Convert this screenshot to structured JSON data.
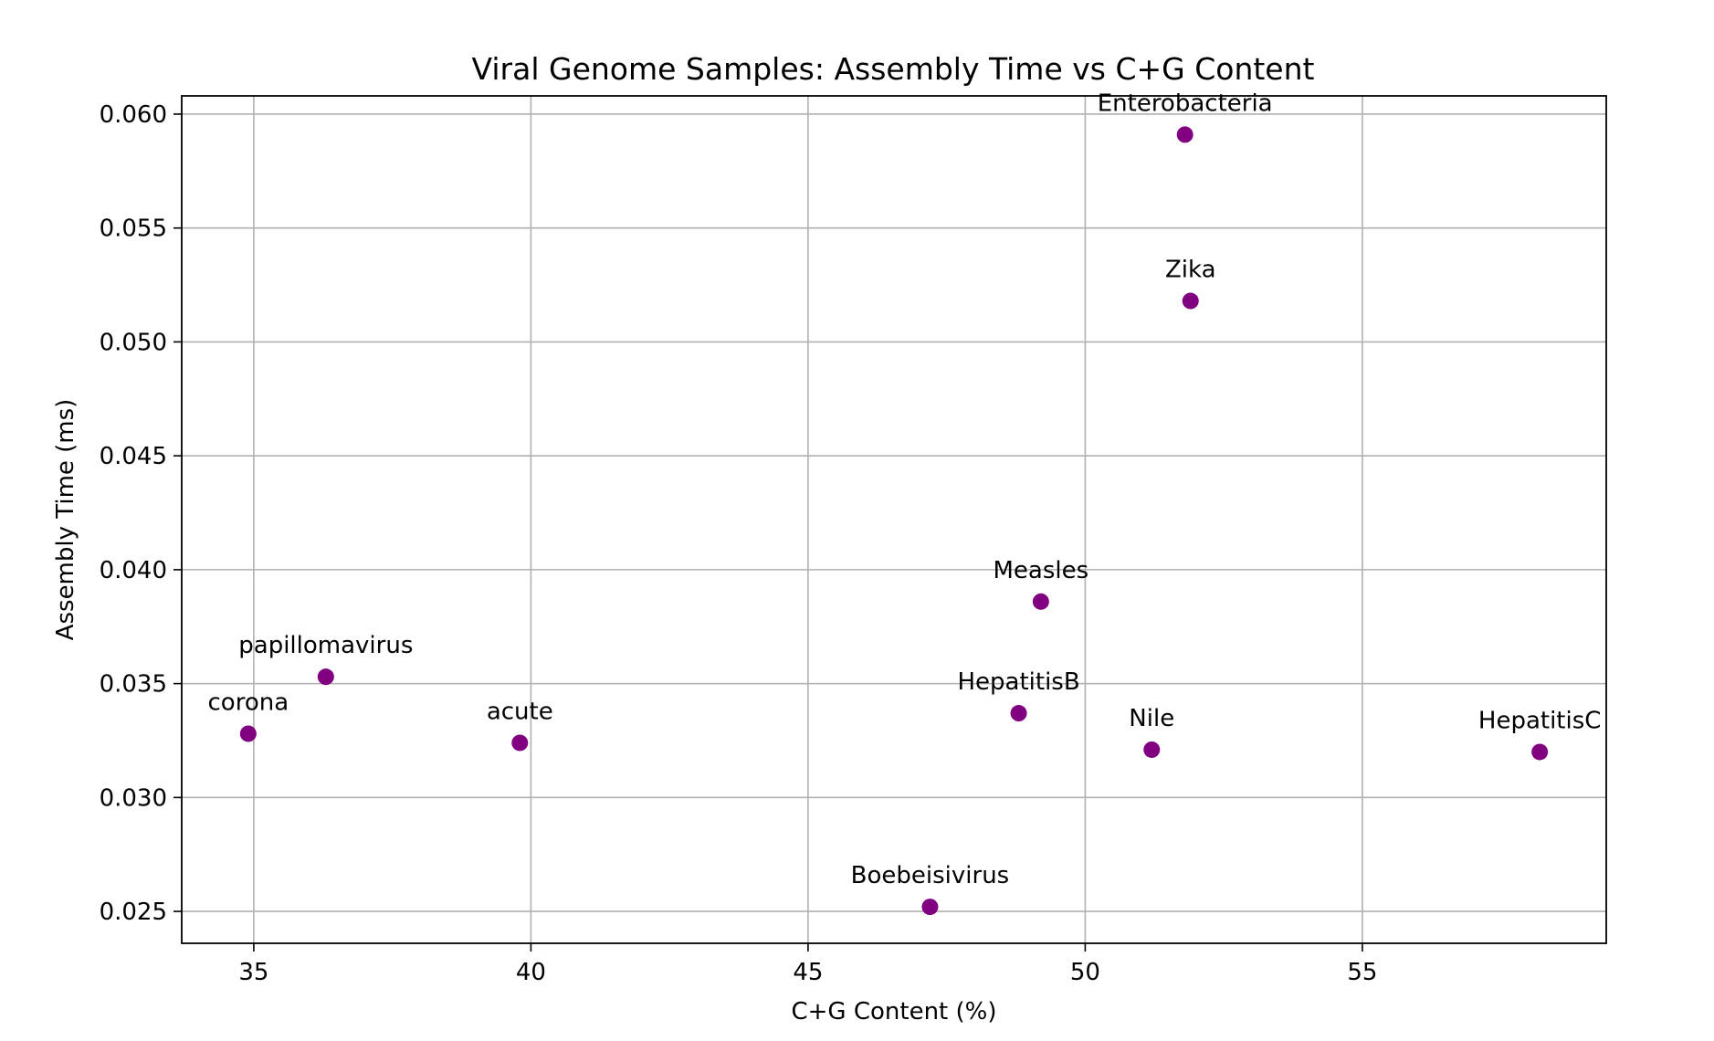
{
  "chart_data": {
    "type": "scatter",
    "title": "Viral Genome Samples: Assembly Time vs C+G Content",
    "xlabel": "C+G Content (%)",
    "ylabel": "Assembly Time (ms)",
    "xlim": [
      33.7,
      59.4
    ],
    "ylim": [
      0.0236,
      0.0608
    ],
    "xticks": [
      35,
      40,
      45,
      50,
      55
    ],
    "yticks": [
      0.025,
      0.03,
      0.035,
      0.04,
      0.045,
      0.05,
      0.055,
      0.06
    ],
    "xtick_labels": [
      "35",
      "40",
      "45",
      "50",
      "55"
    ],
    "ytick_labels": [
      "0.025",
      "0.030",
      "0.035",
      "0.040",
      "0.045",
      "0.050",
      "0.055",
      "0.060"
    ],
    "grid": true,
    "point_color": "#800080",
    "points": [
      {
        "label": "Enterobacteria",
        "x": 51.8,
        "y": 0.0591
      },
      {
        "label": "Zika",
        "x": 51.9,
        "y": 0.0518
      },
      {
        "label": "Measles",
        "x": 49.2,
        "y": 0.0386
      },
      {
        "label": "papillomavirus",
        "x": 36.3,
        "y": 0.0353
      },
      {
        "label": "HepatitisB",
        "x": 48.8,
        "y": 0.0337
      },
      {
        "label": "corona",
        "x": 34.9,
        "y": 0.0328
      },
      {
        "label": "acute",
        "x": 39.8,
        "y": 0.0324
      },
      {
        "label": "Nile",
        "x": 51.2,
        "y": 0.0321
      },
      {
        "label": "HepatitisC",
        "x": 58.2,
        "y": 0.032
      },
      {
        "label": "Boebeisivirus",
        "x": 47.2,
        "y": 0.0252
      }
    ]
  }
}
